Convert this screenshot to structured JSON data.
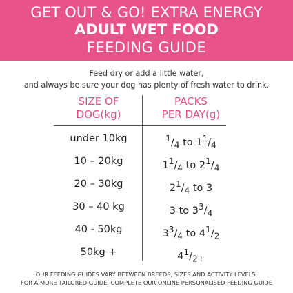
{
  "banner": {
    "line1": "GET OUT & GO! EXTRA ENERGY",
    "line2": "ADULT WET FOOD",
    "line3": "FEEDING GUIDE"
  },
  "intro": {
    "line1": "Feed dry or add a little water,",
    "line2": "and always be sure your dog has plenty of fresh water to drink."
  },
  "table": {
    "header_left_line1": "SIZE OF",
    "header_left_line2": "DOG(kg)",
    "header_right_line1": "PACKS",
    "header_right_line2": "PER DAY(g)",
    "rows": [
      {
        "size": "under 10kg",
        "packs": "1/4 to 11/4"
      },
      {
        "size": "10 – 20kg",
        "packs": "11/4 to 21/4"
      },
      {
        "size": "20 – 30kg",
        "packs": "21/4 to 3"
      },
      {
        "size": "30 – 40 kg",
        "packs": "3 to 33/4"
      },
      {
        "size": "40 - 50kg",
        "packs": "33/4 to 41/2"
      },
      {
        "size": "50kg +",
        "packs": "41/2+"
      }
    ]
  },
  "footer": {
    "line1": "OUR FEEDING GUIDES VARY BETWEEN BREEDS, SIZES AND ACTIVITY LEVELS.",
    "line2": "FOR A MORE TAILORED GUIDE, COMPLETE OUR ONLINE PERSONALISED FEEDING GUIDE"
  },
  "colors": {
    "banner": "#e8538a",
    "header_text": "#e0507f"
  }
}
